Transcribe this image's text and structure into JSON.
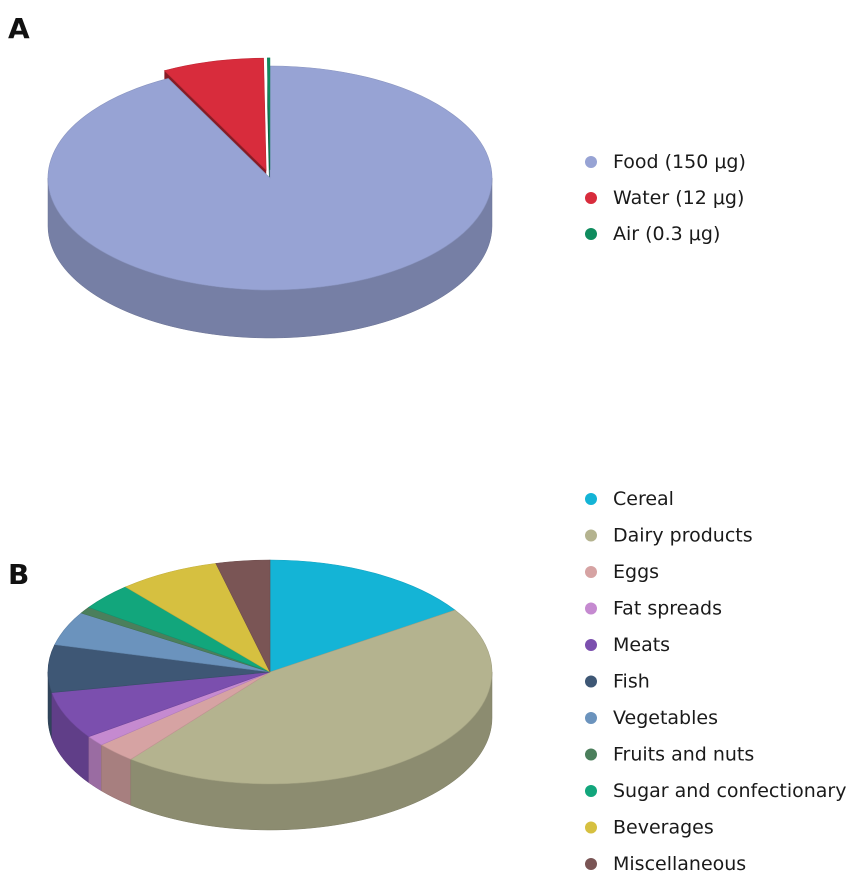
{
  "chart_data": [
    {
      "panel_label": "A",
      "type": "pie",
      "categories": [
        "Food (150 μg)",
        "Water (12 μg)",
        "Air (0.3 μg)"
      ],
      "values": [
        150,
        12,
        0.3
      ],
      "colors": [
        "#97a3d4",
        "#d82c3c",
        "#0f8c5e"
      ],
      "exploded": [
        false,
        true,
        true
      ],
      "legend_position": "right"
    },
    {
      "panel_label": "B",
      "type": "pie",
      "categories": [
        "Cereal",
        "Dairy products",
        "Eggs",
        "Fat spreads",
        "Meats",
        "Fish",
        "Vegetables",
        "Fruits and nuts",
        "Sugar and confectionary",
        "Beverages",
        "Miscellaneous"
      ],
      "values": [
        16,
        46,
        3,
        1.5,
        7,
        7,
        5,
        1,
        4,
        7.5,
        4
      ],
      "colors": [
        "#14b4d6",
        "#b4b38f",
        "#d6a3a3",
        "#c58ad0",
        "#7b4fae",
        "#3e5775",
        "#6b93bd",
        "#4b7f5c",
        "#12a67c",
        "#d6c040",
        "#7a5555"
      ],
      "legend_position": "right"
    }
  ]
}
